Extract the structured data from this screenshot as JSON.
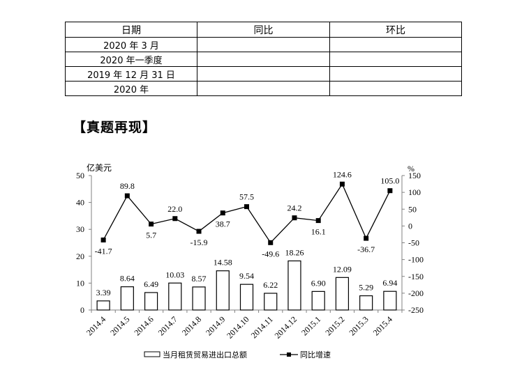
{
  "table": {
    "headers": [
      "日期",
      "同比",
      "环比"
    ],
    "rows": [
      [
        "2020 年 3 月",
        "",
        ""
      ],
      [
        "2020 年一季度",
        "",
        ""
      ],
      [
        "2019 年 12 月 31 日",
        "",
        ""
      ],
      [
        "2020 年",
        "",
        ""
      ]
    ]
  },
  "heading": "【真题再现】",
  "chart_data": {
    "type": "bar+line",
    "categories": [
      "2014.4",
      "2014.5",
      "2014.6",
      "2014.7",
      "2014.8",
      "2014.9",
      "2014.10",
      "2014.11",
      "2014.12",
      "2015.1",
      "2015.2",
      "2015.3",
      "2015.4"
    ],
    "series": [
      {
        "name": "当月租赁贸易进出口总额",
        "type": "bar",
        "axis": "left",
        "values": [
          3.39,
          8.64,
          6.49,
          10.03,
          8.57,
          14.58,
          9.54,
          6.22,
          18.26,
          6.9,
          12.09,
          5.29,
          6.94
        ]
      },
      {
        "name": "同比增速",
        "type": "line",
        "axis": "right",
        "values": [
          -41.7,
          89.8,
          5.7,
          22.0,
          -15.9,
          38.7,
          57.5,
          -49.6,
          24.2,
          16.1,
          124.6,
          -36.7,
          105.0
        ]
      }
    ],
    "bar_labels": [
      "3.39",
      "8.64",
      "6.49",
      "10.03",
      "8.57",
      "14.58",
      "9.54",
      "6.22",
      "18.26",
      "6.90",
      "12.09",
      "5.29",
      "6.94"
    ],
    "line_labels": [
      "-41.7",
      "89.8",
      "5.7",
      "22.0",
      "-15.9",
      "38.7",
      "57.5",
      "-49.6",
      "24.2",
      "16.1",
      "124.6",
      "-36.7",
      "105.0"
    ],
    "left_axis": {
      "label": "亿美元",
      "ylim": [
        0,
        50
      ],
      "ticks": [
        "0",
        "10",
        "20",
        "30",
        "40",
        "50"
      ]
    },
    "right_axis": {
      "label": "%",
      "ylim": [
        -250,
        150
      ],
      "ticks": [
        "-250",
        "-200",
        "-150",
        "-100",
        "-50",
        "0",
        "50",
        "100",
        "150"
      ]
    },
    "legend": {
      "position": "bottom",
      "entries": [
        "当月租赁贸易进出口总额",
        "同比增速"
      ]
    },
    "grid": false
  }
}
